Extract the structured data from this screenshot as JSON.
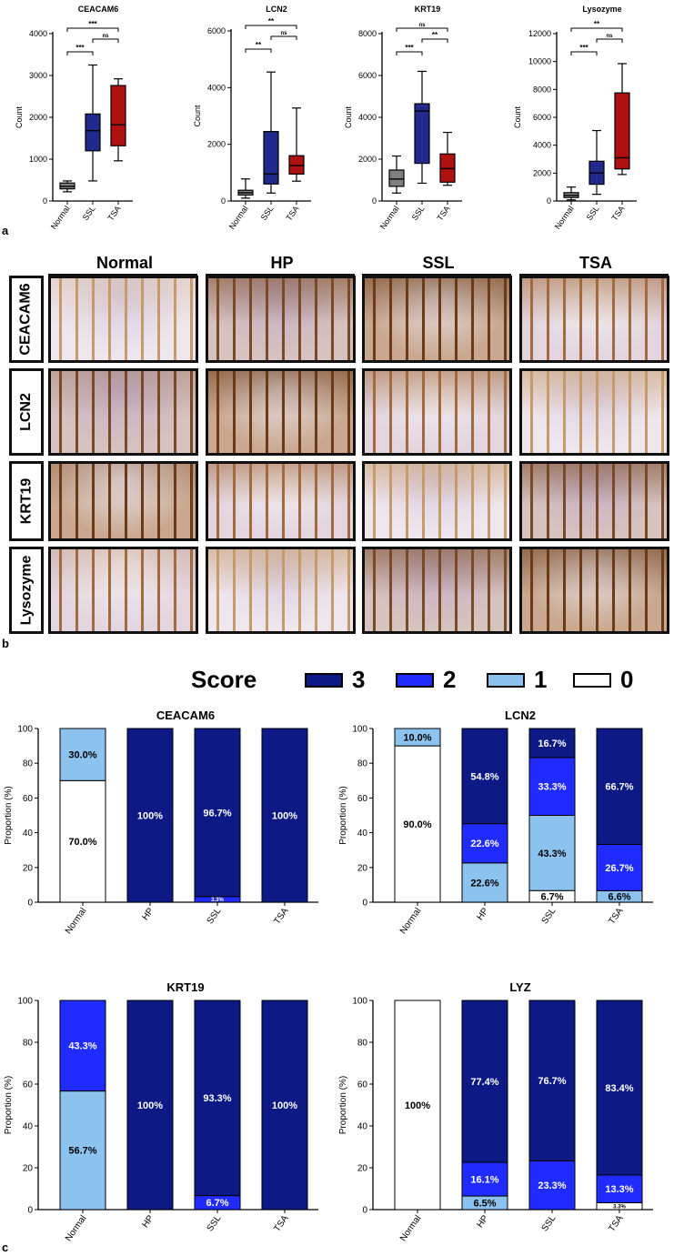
{
  "panel_labels": {
    "a": "a",
    "b": "b",
    "c": "c"
  },
  "colors": {
    "normal_box": "#808080",
    "ssl_box": "#1f2a8c",
    "tsa_box": "#b01010",
    "score3": "#0d1a85",
    "score2": "#1f2bff",
    "score1": "#8cc2ee",
    "score0": "#ffffff"
  },
  "chart_data": [
    {
      "type": "box",
      "title": "CEACAM6",
      "ylabel": "Count",
      "ylim": [
        0,
        4000
      ],
      "yticks": [
        "0",
        "1000",
        "2000",
        "3000",
        "4000"
      ],
      "categories": [
        "Normal",
        "SSL",
        "TSA"
      ],
      "boxes": [
        {
          "min": 220,
          "q1": 290,
          "median": 350,
          "q3": 430,
          "max": 480
        },
        {
          "min": 480,
          "q1": 1200,
          "median": 1680,
          "q3": 2080,
          "max": 3250
        },
        {
          "min": 960,
          "q1": 1320,
          "median": 1820,
          "q3": 2760,
          "max": 2920
        }
      ],
      "significance": [
        {
          "pair": [
            0,
            1
          ],
          "label": "***",
          "level": 1
        },
        {
          "pair": [
            1,
            2
          ],
          "label": "ns",
          "level": 2
        },
        {
          "pair": [
            0,
            2
          ],
          "label": "***",
          "level": 3
        }
      ]
    },
    {
      "type": "box",
      "title": "LCN2",
      "ylabel": "Count",
      "ylim": [
        0,
        6000
      ],
      "yticks": [
        "0",
        "2000",
        "4000",
        "6000"
      ],
      "categories": [
        "Normal",
        "SSL",
        "TSA"
      ],
      "boxes": [
        {
          "min": 100,
          "q1": 210,
          "median": 290,
          "q3": 380,
          "max": 780
        },
        {
          "min": 280,
          "q1": 600,
          "median": 950,
          "q3": 2450,
          "max": 4550
        },
        {
          "min": 700,
          "q1": 950,
          "median": 1250,
          "q3": 1600,
          "max": 3280
        }
      ],
      "significance": [
        {
          "pair": [
            0,
            1
          ],
          "label": "**",
          "level": 1
        },
        {
          "pair": [
            1,
            2
          ],
          "label": "ns",
          "level": 2
        },
        {
          "pair": [
            0,
            2
          ],
          "label": "**",
          "level": 3
        }
      ]
    },
    {
      "type": "box",
      "title": "KRT19",
      "ylabel": "Count",
      "ylim": [
        0,
        8000
      ],
      "yticks": [
        "0",
        "2000",
        "4000",
        "6000",
        "8000"
      ],
      "categories": [
        "Normal",
        "SSL",
        "TSA"
      ],
      "boxes": [
        {
          "min": 380,
          "q1": 700,
          "median": 1050,
          "q3": 1480,
          "max": 2150
        },
        {
          "min": 850,
          "q1": 1800,
          "median": 4300,
          "q3": 4650,
          "max": 6200
        },
        {
          "min": 750,
          "q1": 900,
          "median": 1550,
          "q3": 2250,
          "max": 3280
        }
      ],
      "significance": [
        {
          "pair": [
            0,
            1
          ],
          "label": "***",
          "level": 1
        },
        {
          "pair": [
            1,
            2
          ],
          "label": "**",
          "level": 2
        },
        {
          "pair": [
            0,
            2
          ],
          "label": "ns",
          "level": 3
        }
      ]
    },
    {
      "type": "box",
      "title": "Lysozyme",
      "ylabel": "Count",
      "ylim": [
        0,
        12000
      ],
      "yticks": [
        "0",
        "2000",
        "4000",
        "6000",
        "8000",
        "10000",
        "12000"
      ],
      "categories": [
        "Normal",
        "SSL",
        "TSA"
      ],
      "boxes": [
        {
          "min": 80,
          "q1": 250,
          "median": 400,
          "q3": 600,
          "max": 1000
        },
        {
          "min": 480,
          "q1": 1200,
          "median": 2000,
          "q3": 2850,
          "max": 5050
        },
        {
          "min": 1900,
          "q1": 2300,
          "median": 3100,
          "q3": 7750,
          "max": 9850
        }
      ],
      "significance": [
        {
          "pair": [
            0,
            1
          ],
          "label": "***",
          "level": 1
        },
        {
          "pair": [
            1,
            2
          ],
          "label": "ns",
          "level": 2
        },
        {
          "pair": [
            0,
            2
          ],
          "label": "**",
          "level": 3
        }
      ]
    },
    {
      "type": "stacked-bar",
      "title": "CEACAM6",
      "ylabel": "Proportion (%)",
      "ylim": [
        0,
        100
      ],
      "yticks": [
        "0",
        "20",
        "40",
        "60",
        "80",
        "100"
      ],
      "categories": [
        "Normal",
        "HP",
        "SSL",
        "TSA"
      ],
      "series": [
        {
          "score": "0",
          "values": [
            70.0,
            0,
            0,
            0
          ],
          "labels": [
            "70.0%",
            "",
            "",
            ""
          ]
        },
        {
          "score": "1",
          "values": [
            30.0,
            0,
            0,
            0
          ],
          "labels": [
            "30.0%",
            "",
            "",
            ""
          ]
        },
        {
          "score": "2",
          "values": [
            0,
            0,
            3.3,
            0
          ],
          "labels": [
            "",
            "",
            "3.3%",
            ""
          ]
        },
        {
          "score": "3",
          "values": [
            0,
            100,
            96.7,
            100
          ],
          "labels": [
            "",
            "100%",
            "96.7%",
            "100%"
          ]
        }
      ]
    },
    {
      "type": "stacked-bar",
      "title": "LCN2",
      "ylabel": "Proportion (%)",
      "ylim": [
        0,
        100
      ],
      "yticks": [
        "0",
        "20",
        "40",
        "60",
        "80",
        "100"
      ],
      "categories": [
        "Normal",
        "HP",
        "SSL",
        "TSA"
      ],
      "series": [
        {
          "score": "0",
          "values": [
            90.0,
            0,
            6.7,
            0
          ],
          "labels": [
            "90.0%",
            "",
            "6.7%",
            ""
          ]
        },
        {
          "score": "1",
          "values": [
            10.0,
            22.6,
            43.3,
            6.6
          ],
          "labels": [
            "10.0%",
            "22.6%",
            "43.3%",
            "6.6%"
          ]
        },
        {
          "score": "2",
          "values": [
            0,
            22.6,
            33.3,
            26.7
          ],
          "labels": [
            "",
            "22.6%",
            "33.3%",
            "26.7%"
          ]
        },
        {
          "score": "3",
          "values": [
            0,
            54.8,
            16.7,
            66.7
          ],
          "labels": [
            "",
            "54.8%",
            "16.7%",
            "66.7%"
          ]
        }
      ]
    },
    {
      "type": "stacked-bar",
      "title": "KRT19",
      "ylabel": "Proportion (%)",
      "ylim": [
        0,
        100
      ],
      "yticks": [
        "0",
        "20",
        "40",
        "60",
        "80",
        "100"
      ],
      "categories": [
        "Normal",
        "HP",
        "SSL",
        "TSA"
      ],
      "series": [
        {
          "score": "0",
          "values": [
            0,
            0,
            0,
            0
          ],
          "labels": [
            "",
            "",
            "",
            ""
          ]
        },
        {
          "score": "1",
          "values": [
            56.7,
            0,
            0,
            0
          ],
          "labels": [
            "56.7%",
            "",
            "",
            ""
          ]
        },
        {
          "score": "2",
          "values": [
            43.3,
            0,
            6.7,
            0
          ],
          "labels": [
            "43.3%",
            "",
            "6.7%",
            ""
          ]
        },
        {
          "score": "3",
          "values": [
            0,
            100,
            93.3,
            100
          ],
          "labels": [
            "",
            "100%",
            "93.3%",
            "100%"
          ]
        }
      ]
    },
    {
      "type": "stacked-bar",
      "title": "LYZ",
      "ylabel": "Proportion (%)",
      "ylim": [
        0,
        100
      ],
      "yticks": [
        "0",
        "20",
        "40",
        "60",
        "80",
        "100"
      ],
      "categories": [
        "Normal",
        "HP",
        "SSL",
        "TSA"
      ],
      "series": [
        {
          "score": "0",
          "values": [
            100,
            0,
            0,
            3.3
          ],
          "labels": [
            "100%",
            "",
            "",
            "3.3%"
          ]
        },
        {
          "score": "1",
          "values": [
            0,
            6.5,
            0,
            0
          ],
          "labels": [
            "",
            "6.5%",
            "",
            ""
          ]
        },
        {
          "score": "2",
          "values": [
            0,
            16.1,
            23.3,
            13.3
          ],
          "labels": [
            "",
            "16.1%",
            "23.3%",
            "13.3%"
          ]
        },
        {
          "score": "3",
          "values": [
            0,
            77.4,
            76.7,
            83.4
          ],
          "labels": [
            "",
            "77.4%",
            "76.7%",
            "83.4%"
          ]
        }
      ]
    }
  ],
  "histology": {
    "columns": [
      "Normal",
      "HP",
      "SSL",
      "TSA"
    ],
    "rows": [
      "CEACAM6",
      "LCN2",
      "KRT19",
      "Lysozyme"
    ]
  },
  "legend": {
    "title": "Score",
    "items": [
      {
        "label": "3",
        "color": "#0d1a85"
      },
      {
        "label": "2",
        "color": "#1f2bff"
      },
      {
        "label": "1",
        "color": "#8cc2ee"
      },
      {
        "label": "0",
        "color": "#ffffff"
      }
    ]
  }
}
